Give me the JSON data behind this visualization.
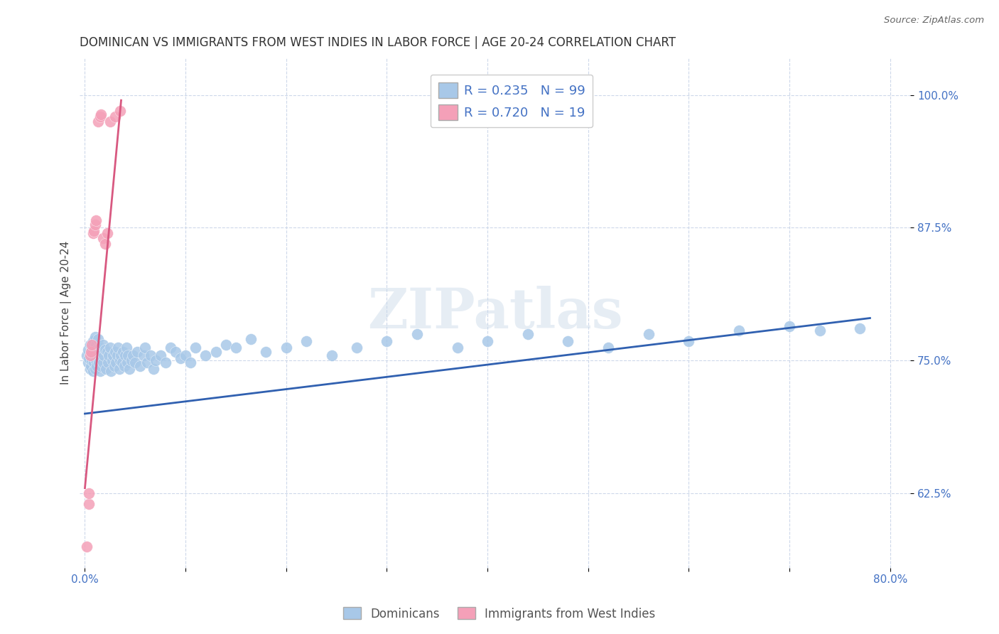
{
  "title": "DOMINICAN VS IMMIGRANTS FROM WEST INDIES IN LABOR FORCE | AGE 20-24 CORRELATION CHART",
  "source": "Source: ZipAtlas.com",
  "ylabel": "In Labor Force | Age 20-24",
  "xlim": [
    -0.005,
    0.82
  ],
  "ylim": [
    0.555,
    1.035
  ],
  "yticks": [
    0.625,
    0.75,
    0.875,
    1.0
  ],
  "yticklabels": [
    "62.5%",
    "75.0%",
    "87.5%",
    "100.0%"
  ],
  "blue_r": "0.235",
  "blue_n": "99",
  "pink_r": "0.720",
  "pink_n": "19",
  "legend_label1": "Dominicans",
  "legend_label2": "Immigrants from West Indies",
  "blue_color": "#a8c8e8",
  "pink_color": "#f4a0b8",
  "blue_line_color": "#3060b0",
  "pink_line_color": "#d85880",
  "watermark_text": "ZIPatlas",
  "blue_x": [
    0.002,
    0.003,
    0.003,
    0.004,
    0.005,
    0.005,
    0.006,
    0.006,
    0.007,
    0.007,
    0.008,
    0.008,
    0.009,
    0.009,
    0.01,
    0.01,
    0.01,
    0.011,
    0.011,
    0.012,
    0.012,
    0.013,
    0.013,
    0.014,
    0.015,
    0.015,
    0.016,
    0.016,
    0.017,
    0.018,
    0.018,
    0.019,
    0.02,
    0.021,
    0.022,
    0.023,
    0.024,
    0.025,
    0.026,
    0.027,
    0.028,
    0.029,
    0.03,
    0.031,
    0.032,
    0.033,
    0.034,
    0.035,
    0.036,
    0.037,
    0.038,
    0.039,
    0.04,
    0.041,
    0.042,
    0.043,
    0.044,
    0.046,
    0.048,
    0.05,
    0.052,
    0.055,
    0.058,
    0.06,
    0.062,
    0.065,
    0.068,
    0.07,
    0.075,
    0.08,
    0.085,
    0.09,
    0.095,
    0.1,
    0.105,
    0.11,
    0.12,
    0.13,
    0.14,
    0.15,
    0.165,
    0.18,
    0.2,
    0.22,
    0.245,
    0.27,
    0.3,
    0.33,
    0.37,
    0.4,
    0.44,
    0.48,
    0.52,
    0.56,
    0.6,
    0.65,
    0.7,
    0.73,
    0.77
  ],
  "blue_y": [
    0.755,
    0.748,
    0.76,
    0.752,
    0.765,
    0.742,
    0.758,
    0.745,
    0.762,
    0.75,
    0.768,
    0.74,
    0.755,
    0.748,
    0.772,
    0.758,
    0.742,
    0.765,
    0.75,
    0.76,
    0.745,
    0.755,
    0.77,
    0.748,
    0.762,
    0.74,
    0.755,
    0.745,
    0.75,
    0.765,
    0.748,
    0.755,
    0.76,
    0.742,
    0.758,
    0.748,
    0.755,
    0.762,
    0.74,
    0.75,
    0.755,
    0.745,
    0.758,
    0.748,
    0.755,
    0.762,
    0.742,
    0.75,
    0.755,
    0.748,
    0.758,
    0.745,
    0.755,
    0.762,
    0.748,
    0.755,
    0.742,
    0.75,
    0.755,
    0.748,
    0.758,
    0.745,
    0.755,
    0.762,
    0.748,
    0.755,
    0.742,
    0.75,
    0.755,
    0.748,
    0.762,
    0.758,
    0.752,
    0.755,
    0.748,
    0.762,
    0.755,
    0.758,
    0.765,
    0.762,
    0.77,
    0.758,
    0.762,
    0.768,
    0.755,
    0.762,
    0.768,
    0.775,
    0.762,
    0.768,
    0.775,
    0.768,
    0.762,
    0.775,
    0.768,
    0.778,
    0.782,
    0.778,
    0.78
  ],
  "pink_x": [
    0.002,
    0.004,
    0.004,
    0.005,
    0.006,
    0.007,
    0.008,
    0.009,
    0.01,
    0.011,
    0.013,
    0.015,
    0.016,
    0.018,
    0.02,
    0.022,
    0.025,
    0.03,
    0.035
  ],
  "pink_y": [
    0.575,
    0.615,
    0.625,
    0.755,
    0.758,
    0.765,
    0.87,
    0.872,
    0.878,
    0.882,
    0.975,
    0.98,
    0.982,
    0.865,
    0.86,
    0.87,
    0.975,
    0.98,
    0.985
  ],
  "blue_line_x": [
    0.0,
    0.78
  ],
  "blue_line_y": [
    0.7,
    0.79
  ],
  "pink_line_x": [
    0.0,
    0.036
  ],
  "pink_line_y": [
    0.63,
    0.995
  ]
}
